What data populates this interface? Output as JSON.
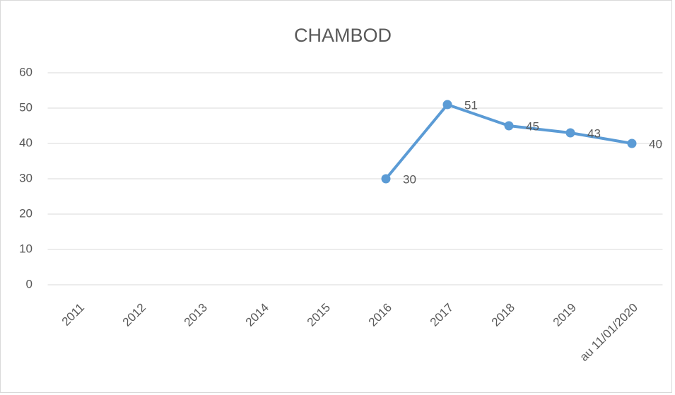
{
  "chart_data": {
    "type": "line",
    "title": "CHAMBOD",
    "categories": [
      "2011",
      "2012",
      "2013",
      "2014",
      "2015",
      "2016",
      "2017",
      "2018",
      "2019",
      "au 11/01/2020"
    ],
    "series": [
      {
        "name": "CHAMBOD",
        "color": "#5b9bd5",
        "values": [
          null,
          null,
          null,
          null,
          null,
          30,
          51,
          45,
          43,
          40
        ]
      }
    ],
    "ylim": [
      0,
      60
    ],
    "yticks": [
      0,
      10,
      20,
      30,
      40,
      50,
      60
    ],
    "grid": true
  }
}
